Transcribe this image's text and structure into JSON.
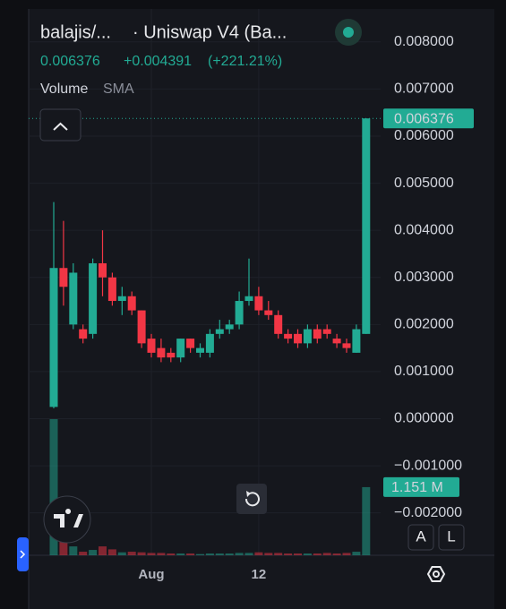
{
  "header": {
    "symbol": "balajis/...",
    "exchange": "· Uniswap V4 (Ba...",
    "change": "+0.004391",
    "change_pct": "(+221.21%)",
    "volume_label": "Volume",
    "sma_label": "SMA",
    "buttons": [
      "A",
      "L"
    ]
  },
  "chart_data": {
    "type": "candlestick",
    "categories": [
      null,
      null,
      null,
      null,
      null,
      null,
      null,
      null,
      null,
      null,
      "Aug",
      null,
      null,
      null,
      null,
      null,
      null,
      null,
      null,
      null,
      null,
      "12",
      null,
      null,
      null,
      null,
      null,
      null,
      null,
      null,
      null,
      null,
      null
    ],
    "open": [
      0.00025,
      0.0032,
      0.002,
      0.0019,
      0.0018,
      0.0033,
      0.003,
      0.0025,
      0.0026,
      0.0023,
      0.0017,
      0.0015,
      0.0014,
      0.0013,
      0.0017,
      0.0014,
      0.0014,
      0.0018,
      0.0019,
      0.002,
      0.0025,
      0.0026,
      0.0023,
      0.0022,
      0.0018,
      0.0018,
      0.0016,
      0.0019,
      0.0019,
      0.0017,
      0.0016,
      0.0014,
      0.0018
    ],
    "high": [
      0.0046,
      0.0042,
      0.0033,
      0.002,
      0.0034,
      0.004,
      0.0031,
      0.0028,
      0.0027,
      0.0023,
      0.0018,
      0.0017,
      0.0015,
      0.0017,
      0.0017,
      0.0016,
      0.0019,
      0.0021,
      0.0021,
      0.0027,
      0.0034,
      0.0028,
      0.0025,
      0.0023,
      0.0019,
      0.0019,
      0.002,
      0.002,
      0.002,
      0.0018,
      0.0017,
      0.002,
      0.006376
    ],
    "low": [
      0.00022,
      0.0024,
      0.0019,
      0.0016,
      0.0017,
      0.0026,
      0.0024,
      0.0022,
      0.0022,
      0.0015,
      0.0013,
      0.0012,
      0.0012,
      0.0012,
      0.0014,
      0.0013,
      0.0013,
      0.0017,
      0.0018,
      0.0019,
      0.0024,
      0.0022,
      0.0021,
      0.0017,
      0.0016,
      0.0015,
      0.0015,
      0.0016,
      0.0017,
      0.0015,
      0.0014,
      0.0014,
      0.0018
    ],
    "close": [
      0.0032,
      0.0028,
      0.0031,
      0.0017,
      0.0033,
      0.003,
      0.0025,
      0.0026,
      0.0023,
      0.0016,
      0.0014,
      0.0013,
      0.0013,
      0.0017,
      0.0015,
      0.0015,
      0.0018,
      0.0019,
      0.002,
      0.0025,
      0.0026,
      0.0023,
      0.0022,
      0.0018,
      0.0017,
      0.0016,
      0.0019,
      0.0017,
      0.0018,
      0.0016,
      0.0015,
      0.0019,
      0.006376
    ],
    "up_color": "#22ab94",
    "down_color": "#f23645",
    "volume": {
      "values": [
        2300000,
        350000,
        150000,
        60000,
        90000,
        150000,
        100000,
        50000,
        60000,
        50000,
        40000,
        40000,
        30000,
        30000,
        30000,
        20000,
        30000,
        30000,
        30000,
        40000,
        40000,
        50000,
        40000,
        40000,
        30000,
        30000,
        30000,
        30000,
        40000,
        30000,
        40000,
        60000,
        1151000
      ],
      "last_label": "1.151 M"
    },
    "ylim": [
      -0.0029,
      0.0087
    ],
    "yticks": [
      {
        "value": -0.002,
        "label": "−0.002000"
      },
      {
        "value": -0.001,
        "label": "−0.001000"
      },
      {
        "value": 0,
        "label": "0.000000"
      },
      {
        "value": 0.001,
        "label": "0.001000"
      },
      {
        "value": 0.002,
        "label": "0.002000"
      },
      {
        "value": 0.003,
        "label": "0.003000"
      },
      {
        "value": 0.004,
        "label": "0.004000"
      },
      {
        "value": 0.005,
        "label": "0.005000"
      },
      {
        "value": 0.006,
        "label": "0.006000"
      },
      {
        "value": 0.007,
        "label": "0.007000"
      },
      {
        "value": 0.008,
        "label": "0.008000"
      }
    ],
    "grid": true
  }
}
